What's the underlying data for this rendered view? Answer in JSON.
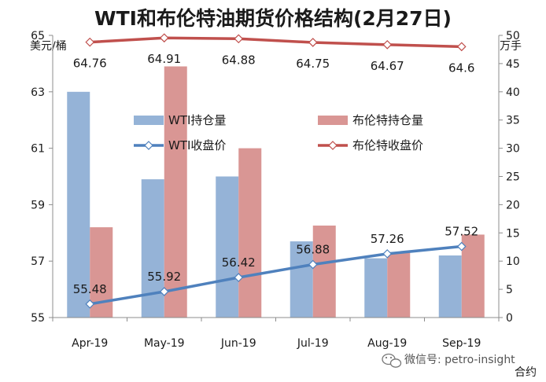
{
  "chart_data": {
    "type": "bar",
    "title": "WTI和布伦特油期货价格结构(2月27日)",
    "ylabel_left": "美元/桶",
    "ylabel_right": "万手",
    "xlabel": "合约",
    "categories": [
      "Apr-19",
      "May-19",
      "Jun-19",
      "Jul-19",
      "Aug-19",
      "Sep-19"
    ],
    "ylim_left": [
      55,
      65
    ],
    "yticks_left": [
      "55",
      "57",
      "59",
      "61",
      "63",
      "65"
    ],
    "ylim_right": [
      0,
      50
    ],
    "yticks_right": [
      "0",
      "5",
      "10",
      "15",
      "20",
      "25",
      "30",
      "35",
      "40",
      "45",
      "50"
    ],
    "legend_position": "center",
    "grid": false,
    "series": [
      {
        "name": "WTI持仓量",
        "kind": "bar",
        "axis": "right",
        "color": "#95b3d7",
        "values": [
          40,
          24.5,
          25,
          13.5,
          10.5,
          11
        ]
      },
      {
        "name": "布伦特持仓量",
        "kind": "bar",
        "axis": "right",
        "color": "#d99694",
        "values": [
          16,
          44.5,
          30,
          16.3,
          11.5,
          14.7
        ]
      },
      {
        "name": "WTI收盘价",
        "kind": "line",
        "axis": "left",
        "color": "#4f81bd",
        "values": [
          55.48,
          55.92,
          56.42,
          56.88,
          57.26,
          57.52
        ],
        "labels": [
          "55.48",
          "55.92",
          "56.42",
          "56.88",
          "57.26",
          "57.52"
        ]
      },
      {
        "name": "布伦特收盘价",
        "kind": "line",
        "axis": "left",
        "color": "#c0504d",
        "values": [
          64.76,
          64.91,
          64.88,
          64.75,
          64.67,
          64.6
        ],
        "labels": [
          "64.76",
          "64.91",
          "64.88",
          "64.75",
          "64.67",
          "64.6"
        ]
      }
    ]
  },
  "watermark": "微信号: petro-insight"
}
